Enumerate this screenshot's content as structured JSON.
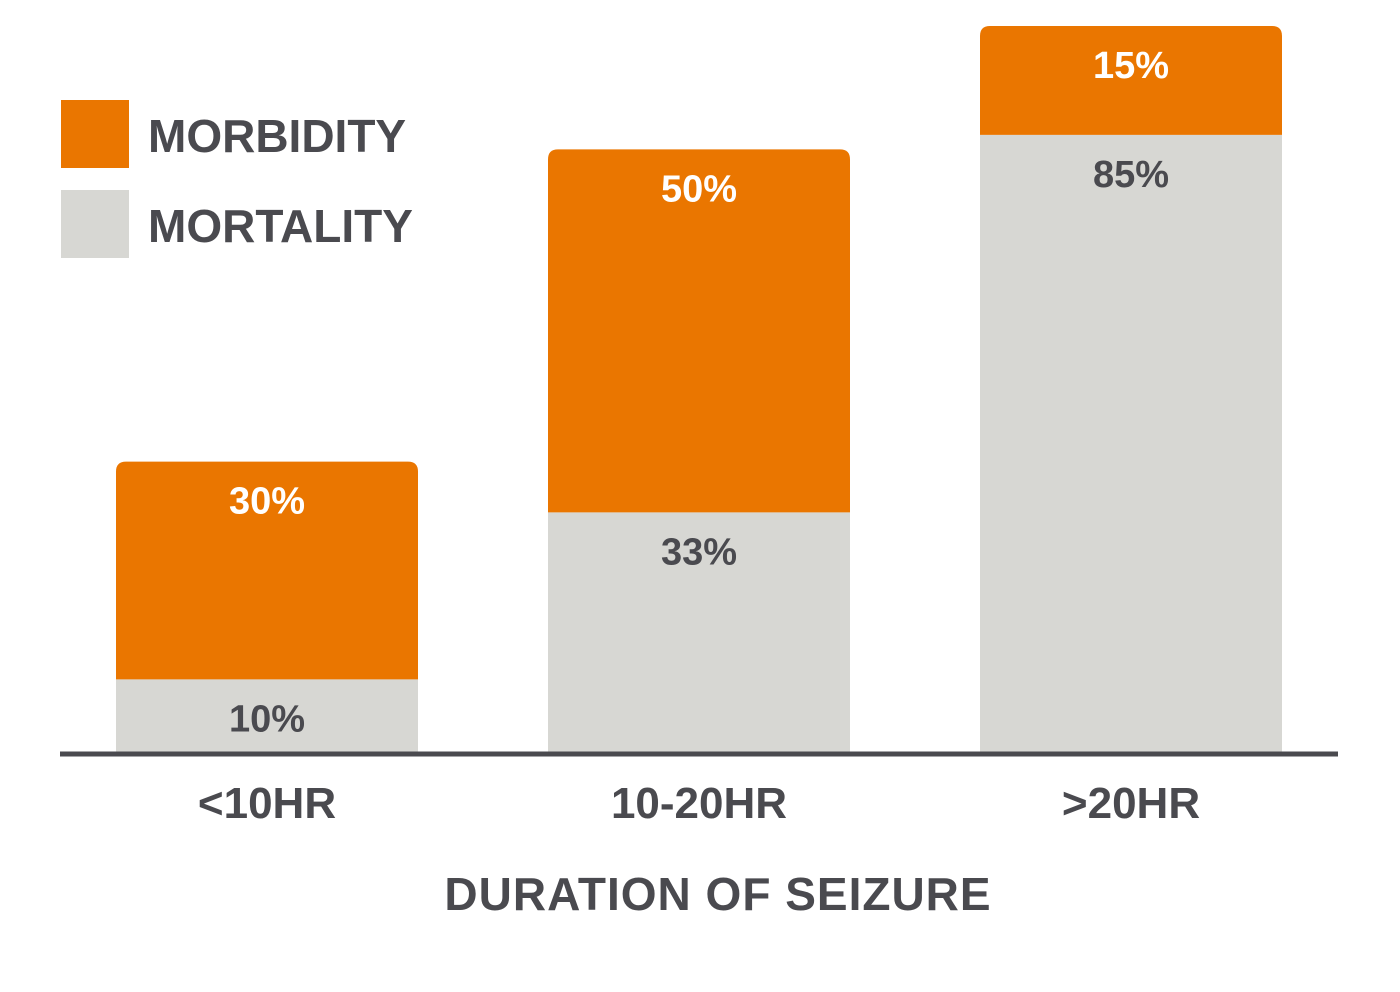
{
  "chart_data": {
    "type": "bar",
    "stacked": true,
    "title": "",
    "xlabel": "DURATION OF SEIZURE",
    "ylabel": "",
    "ylim": [
      0,
      100
    ],
    "grid": false,
    "legend_position": "top-left",
    "categories": [
      "<10HR",
      "10-20HR",
      ">20HR"
    ],
    "series": [
      {
        "name": "MORTALITY",
        "color": "#d7d7d3",
        "label_color": "#4a4a4f",
        "values": [
          10,
          33,
          85
        ],
        "labels": [
          "10%",
          "33%",
          "85%"
        ]
      },
      {
        "name": "MORBIDITY",
        "color": "#ea7600",
        "label_color": "#ffffff",
        "values": [
          30,
          50,
          15
        ],
        "labels": [
          "30%",
          "50%",
          "15%"
        ]
      }
    ],
    "legend": [
      {
        "name": "MORBIDITY",
        "color": "#ea7600"
      },
      {
        "name": "MORTALITY",
        "color": "#d7d7d3"
      }
    ],
    "text_color": "#4a4a4f",
    "axis_color": "#4a4a4f"
  }
}
